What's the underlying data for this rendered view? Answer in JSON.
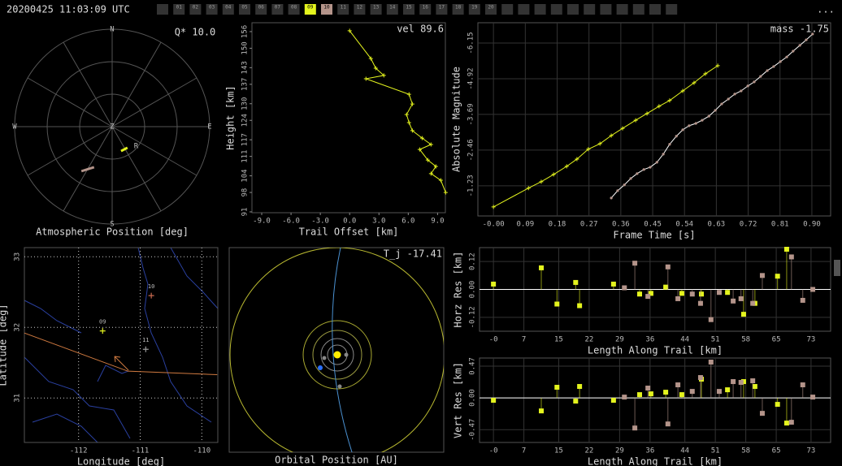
{
  "header": {
    "timestamp": "20200425 11:03:09 UTC",
    "menu": "...",
    "stations": [
      {
        "label": "01"
      },
      {
        "label": "02"
      },
      {
        "label": "03"
      },
      {
        "label": "04"
      },
      {
        "label": "05"
      },
      {
        "label": "06"
      },
      {
        "label": "07"
      },
      {
        "label": "08"
      },
      {
        "label": "09",
        "color": "#e4f41e"
      },
      {
        "label": "10",
        "color": "#b4948a"
      },
      {
        "label": "11"
      },
      {
        "label": "12"
      },
      {
        "label": "13"
      },
      {
        "label": "14"
      },
      {
        "label": "15"
      },
      {
        "label": "16"
      },
      {
        "label": "17"
      },
      {
        "label": "18"
      },
      {
        "label": "19"
      },
      {
        "label": "20"
      }
    ]
  },
  "chart_data": [
    {
      "type": "polar",
      "xlabel": "Atmospheric Position [deg]",
      "annotation": "Q* 10.0",
      "north": "N",
      "east": "E",
      "south": "S",
      "west": "W",
      "zenith_label": "Z",
      "rlim": [
        0,
        90
      ],
      "rticks": [
        30,
        60,
        90
      ],
      "series": [
        {
          "name": "R",
          "color": "#e4f41e",
          "az": [
            160,
            144
          ],
          "zenith": [
            24,
            24
          ]
        },
        {
          "color": "#b4948a",
          "az": [
            214.6,
            204
          ],
          "zenith": [
            50,
            41
          ]
        }
      ]
    },
    {
      "type": "line",
      "xlabel": "Trail Offset [km]",
      "ylabel": "Height [km]",
      "annotation": "vel 89.6",
      "xlim": [
        -10,
        9.8
      ],
      "xticks": [
        {
          "value": -9,
          "label": "-9.0"
        },
        {
          "value": -6,
          "label": "-6.0"
        },
        {
          "value": -3,
          "label": "-3.0"
        },
        {
          "value": 0,
          "label": "0.0"
        },
        {
          "value": 3,
          "label": "3.0"
        },
        {
          "value": 6,
          "label": "6.0"
        },
        {
          "value": 9,
          "label": "9.0"
        }
      ],
      "ylim": [
        90.7,
        159.2
      ],
      "yticks": [
        91,
        98,
        104,
        111,
        117,
        124,
        130,
        137,
        143,
        150,
        156
      ],
      "grid": false,
      "series": [
        {
          "color": "#e4f41e",
          "marker": "+",
          "x": [
            0,
            2.17,
            2.67,
            3.5,
            1.67,
            6.08,
            6.42,
            5.83,
            6.08,
            6.42,
            7.42,
            8.33,
            7.17,
            8.0,
            8.83,
            8.33,
            9.33,
            9.83
          ],
          "y": [
            156.3,
            146.3,
            142.8,
            140.2,
            139.0,
            133.4,
            129.9,
            126.1,
            123.2,
            120.3,
            117.6,
            115.3,
            113.5,
            109.7,
            107.4,
            104.8,
            102.4,
            98.0
          ]
        }
      ]
    },
    {
      "type": "line",
      "xlabel": "Frame Time [s]",
      "ylabel": "Absolute Magnitude",
      "annotation": "mass -1.75",
      "xlim": [
        -0.044,
        0.953
      ],
      "xticks": [
        {
          "value": 0,
          "label": "-0.00"
        },
        0.09,
        0.18,
        0.27,
        0.36,
        0.45,
        0.54,
        0.63,
        0.72,
        0.81,
        {
          "value": 0.9,
          "label": "0.90"
        }
      ],
      "ylim": [
        -0.19,
        -6.85
      ],
      "yticks": [
        -6.15,
        -4.92,
        -3.69,
        -2.46,
        -1.23
      ],
      "grid": true,
      "series": [
        {
          "color": "#e4f41e",
          "marker": "+",
          "x": [
            0,
            0.099,
            0.135,
            0.17,
            0.207,
            0.236,
            0.268,
            0.301,
            0.333,
            0.365,
            0.402,
            0.434,
            0.468,
            0.498,
            0.535,
            0.567,
            0.599,
            0.634
          ],
          "y": [
            -0.5,
            -1.15,
            -1.37,
            -1.62,
            -1.9,
            -2.15,
            -2.49,
            -2.68,
            -2.96,
            -3.21,
            -3.49,
            -3.72,
            -3.97,
            -4.17,
            -4.5,
            -4.78,
            -5.09,
            -5.37
          ]
        },
        {
          "color": "#b4948a",
          "marker": "dot",
          "line_color": "#ffffff",
          "x": [
            0.333,
            0.351,
            0.37,
            0.388,
            0.406,
            0.425,
            0.443,
            0.462,
            0.48,
            0.498,
            0.517,
            0.535,
            0.553,
            0.572,
            0.59,
            0.609,
            0.627,
            0.645,
            0.664,
            0.682,
            0.7,
            0.719,
            0.737,
            0.755,
            0.774,
            0.792,
            0.811,
            0.829,
            0.847,
            0.866,
            0.884,
            0.902
          ],
          "y": [
            -0.81,
            -1.06,
            -1.26,
            -1.48,
            -1.65,
            -1.79,
            -1.87,
            -2.04,
            -2.32,
            -2.66,
            -2.94,
            -3.16,
            -3.3,
            -3.38,
            -3.49,
            -3.63,
            -3.83,
            -4.05,
            -4.22,
            -4.39,
            -4.5,
            -4.67,
            -4.81,
            -5.0,
            -5.2,
            -5.34,
            -5.51,
            -5.67,
            -5.87,
            -6.07,
            -6.26,
            -6.46
          ]
        }
      ]
    },
    {
      "type": "map",
      "xlabel": "Longitude [deg]",
      "ylabel": "Latitude [deg]",
      "xlim": [
        -112.88,
        -109.74
      ],
      "xticks": [
        -112,
        -111,
        -110
      ],
      "ylim": [
        30.37,
        33.13
      ],
      "yticks": [
        31,
        32,
        33
      ],
      "grid": true,
      "series": [
        {
          "color": "#d07a40",
          "x": [
            -112.88,
            -111.2,
            -109.75
          ],
          "y": [
            31.92,
            31.38,
            31.33
          ]
        }
      ],
      "points": [
        {
          "name": "09",
          "color": "#e4f41e",
          "x": -111.61,
          "y": 31.95
        },
        {
          "name": "10",
          "color": "#c86a50",
          "x": -110.82,
          "y": 32.45
        },
        {
          "name": "11",
          "color": "#999999",
          "x": -110.91,
          "y": 31.69
        }
      ]
    },
    {
      "type": "orbit",
      "xlabel": "Orbital Position [AU]",
      "annotation": "T_j -17.41"
    },
    {
      "type": "stem",
      "xlabel": "Length Along Trail [km]",
      "ylabel": "Horz Res [km]",
      "xlim": [
        -3.2,
        77.5
      ],
      "xticks": [
        {
          "value": 0,
          "label": "-0"
        },
        7,
        15,
        22,
        29,
        36,
        44,
        51,
        58,
        65,
        73
      ],
      "ylim": [
        -0.18,
        0.18
      ],
      "yticks": [
        -0.12,
        {
          "value": 0,
          "label": "0.00"
        },
        0.12
      ],
      "grid": true,
      "series": [
        {
          "color": "#e4f41e",
          "x": [
            0,
            11.0,
            14.6,
            18.9,
            19.8,
            27.6,
            33.6,
            36.2,
            39.6,
            43.3,
            47.8,
            53.8,
            57.5,
            60.1,
            65.3,
            67.4
          ],
          "values": [
            0.023,
            0.093,
            -0.063,
            0.03,
            -0.07,
            0.023,
            -0.02,
            -0.017,
            0.01,
            -0.017,
            -0.02,
            -0.013,
            -0.107,
            -0.06,
            0.057,
            0.173
          ]
        },
        {
          "color": "#b4948a",
          "x": [
            30.1,
            32.5,
            35.5,
            40.1,
            42.4,
            45.7,
            47.6,
            50.0,
            51.9,
            55.1,
            56.9,
            59.6,
            61.8,
            68.5,
            71.1,
            73.4
          ],
          "values": [
            0.007,
            0.113,
            -0.03,
            0.097,
            -0.04,
            -0.02,
            -0.06,
            -0.13,
            -0.013,
            -0.05,
            -0.04,
            -0.06,
            0.06,
            0.14,
            -0.047,
            0
          ]
        }
      ]
    },
    {
      "type": "stem",
      "xlabel": "Length Along Trail [km]",
      "ylabel": "Vert Res [km]",
      "xlim": [
        -3.2,
        77.5
      ],
      "xticks": [
        {
          "value": 0,
          "label": "-0"
        },
        7,
        15,
        22,
        29,
        36,
        44,
        51,
        58,
        65,
        73
      ],
      "ylim": [
        -0.66,
        0.59
      ],
      "yticks": [
        -0.47,
        {
          "value": 0,
          "label": "0.00"
        },
        0.47
      ],
      "grid": true,
      "series": [
        {
          "color": "#e4f41e",
          "x": [
            0,
            11.0,
            14.6,
            18.9,
            19.8,
            27.6,
            33.6,
            36.2,
            39.6,
            43.3,
            47.8,
            53.8,
            57.5,
            60.1,
            65.3,
            67.4
          ],
          "values": [
            -0.036,
            -0.193,
            0.157,
            -0.048,
            0.169,
            -0.036,
            0.048,
            0.06,
            0.084,
            0.048,
            0.277,
            0.12,
            0.241,
            0.169,
            -0.096,
            -0.373
          ]
        },
        {
          "color": "#b4948a",
          "x": [
            30.1,
            32.5,
            35.5,
            40.1,
            42.4,
            45.7,
            47.6,
            50.0,
            51.9,
            55.1,
            56.9,
            59.6,
            61.8,
            68.5,
            71.1,
            73.4
          ],
          "values": [
            0.012,
            -0.446,
            0.145,
            -0.386,
            0.193,
            0.096,
            0.301,
            0.53,
            0.096,
            0.241,
            0.229,
            0.253,
            -0.229,
            -0.361,
            0.193,
            0.012
          ]
        }
      ]
    }
  ]
}
